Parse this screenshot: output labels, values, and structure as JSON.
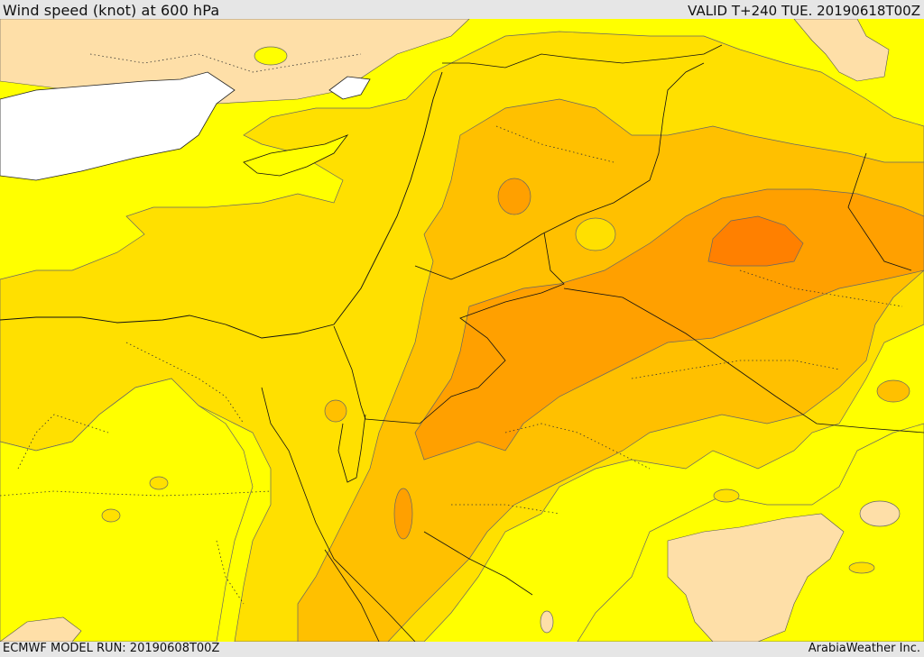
{
  "header": {
    "title": "Wind speed (knot) at 600 hPa",
    "valid": "VALID T+240 TUE. 20190618T00Z"
  },
  "footer": {
    "model_run": "ECMWF MODEL RUN: 20190608T00Z",
    "credit": "ArabiaWeather Inc."
  },
  "colors": {
    "land_low": "#fedfa8",
    "sea": "#ffffff",
    "band_yellow": "#ffff00",
    "band_gold": "#ffe000",
    "band_amber": "#ffc000",
    "band_orange": "#ffa000",
    "band_dark_orange": "#ff8000"
  }
}
